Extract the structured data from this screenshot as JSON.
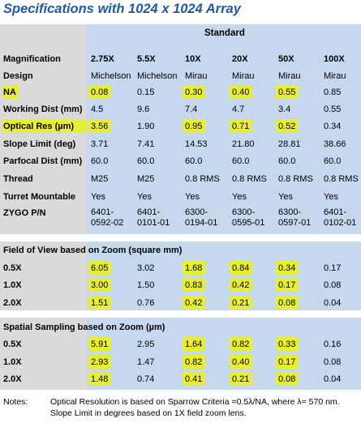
{
  "title": "Specifications with 1024 x 1024 Array",
  "group_header": "Standard",
  "columns": [
    "2.75X",
    "5.5X",
    "10X",
    "20X",
    "50X",
    "100X"
  ],
  "spec_rows": [
    {
      "label": "Magnification",
      "values": [
        "2.75X",
        "5.5X",
        "10X",
        "20X",
        "50X",
        "100X"
      ],
      "header": true
    },
    {
      "label": "Design",
      "values": [
        "Michelson",
        "Michelson",
        "Mirau",
        "Mirau",
        "Mirau",
        "Mirau"
      ]
    },
    {
      "label": "NA",
      "values": [
        "0.08",
        "0.15",
        "0.30",
        "0.40",
        "0.55",
        "0.85"
      ],
      "highlight_label": true,
      "highlight": [
        0,
        2,
        3,
        4
      ]
    },
    {
      "label": "Working Dist (mm)",
      "values": [
        "4.5",
        "9.6",
        "7.4",
        "4.7",
        "3.4",
        "0.55"
      ]
    },
    {
      "label": "Optical Res (µm)",
      "values": [
        "3.56",
        "1.90",
        "0.95",
        "0.71",
        "0.52",
        "0.34"
      ],
      "highlight_label": true,
      "highlight": [
        0,
        2,
        3,
        4
      ]
    },
    {
      "label": "Slope Limit (deg)",
      "values": [
        "3.71",
        "7.41",
        "14.53",
        "21.80",
        "28.81",
        "38.66"
      ]
    },
    {
      "label": "Parfocal Dist (mm)",
      "values": [
        "60.0",
        "60.0",
        "60.0",
        "60.0",
        "60.0",
        "60.0"
      ]
    },
    {
      "label": "Thread",
      "values": [
        "M25",
        "M25",
        "0.8 RMS",
        "0.8 RMS",
        "0.8 RMS",
        "0.8 RMS"
      ]
    },
    {
      "label": "Turret Mountable",
      "values": [
        "Yes",
        "Yes",
        "Yes",
        "Yes",
        "Yes",
        "Yes"
      ]
    },
    {
      "label": "ZYGO P/N",
      "values": [
        "6401-0592-02",
        "6401-0101-01",
        "6300-0194-01",
        "6300-0595-01",
        "6300-0597-01",
        "6401-0102-01"
      ]
    }
  ],
  "fov_section": {
    "title": "Field of View based on Zoom (square mm)",
    "rows": [
      {
        "label": "0.5X",
        "values": [
          "6.05",
          "3.02",
          "1.68",
          "0.84",
          "0.34",
          "0.17"
        ],
        "highlight": [
          0,
          2,
          3,
          4
        ]
      },
      {
        "label": "1.0X",
        "values": [
          "3.00",
          "1.50",
          "0.83",
          "0.42",
          "0.17",
          "0.08"
        ],
        "highlight": [
          0,
          2,
          3,
          4
        ]
      },
      {
        "label": "2.0X",
        "values": [
          "1.51",
          "0.76",
          "0.42",
          "0.21",
          "0.08",
          "0.04"
        ],
        "highlight": [
          0,
          2,
          3,
          4
        ]
      }
    ]
  },
  "ss_section": {
    "title": "Spatial Sampling based on Zoom (µm)",
    "rows": [
      {
        "label": "0.5X",
        "values": [
          "5.91",
          "2.95",
          "1.64",
          "0.82",
          "0.33",
          "0.16"
        ],
        "highlight": [
          0,
          2,
          3,
          4
        ]
      },
      {
        "label": "1.0X",
        "values": [
          "2.93",
          "1.47",
          "0.82",
          "0.40",
          "0.17",
          "0.08"
        ],
        "highlight": [
          0,
          2,
          3,
          4
        ]
      },
      {
        "label": "2.0X",
        "values": [
          "1.48",
          "0.74",
          "0.41",
          "0.21",
          "0.08",
          "0.04"
        ],
        "highlight": [
          0,
          2,
          3,
          4
        ]
      }
    ]
  },
  "notes": {
    "label": "Notes:",
    "line1": "Optical Resolution is based on Sparrow Criteria =0.5λ/NA, where λ= 570 nm.",
    "line2": "Slope Limit in degrees based on 1X field zoom lens."
  },
  "colors": {
    "highlight": "#e8ef33",
    "title": "#1f5aa6",
    "header_bg": "#c6d8ee",
    "label_bg": "#dadada"
  }
}
